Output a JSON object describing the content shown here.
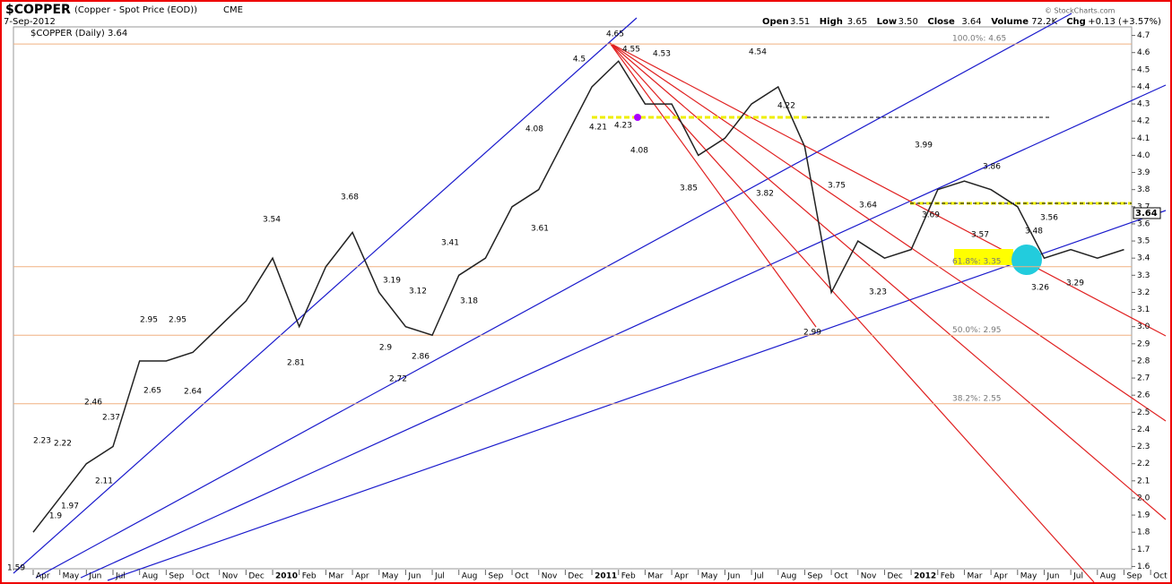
{
  "chart_data": {
    "type": "line",
    "title": "$COPPER",
    "subtitle": "(Copper - Spot Price (EOD))",
    "exchange": "CME",
    "date": "7-Sep-2012",
    "legend_label": "$COPPER (Daily) 3.64",
    "quote": [
      [
        "Open",
        "3.51"
      ],
      [
        "High",
        "3.65"
      ],
      [
        "Low",
        "3.50"
      ],
      [
        "Close",
        "3.64"
      ],
      [
        "Volume",
        "72.2K"
      ],
      [
        "Chg",
        "+0.13 (+3.57%)"
      ]
    ],
    "credit": "© StockCharts.com",
    "last_price": 3.64,
    "start_label": 1.59,
    "categories": [
      "Apr",
      "May",
      "Jun",
      "Jul",
      "Aug",
      "Sep",
      "Oct",
      "Nov",
      "Dec",
      "2010",
      "Feb",
      "Mar",
      "Apr",
      "May",
      "Jun",
      "Jul",
      "Aug",
      "Sep",
      "Oct",
      "Nov",
      "Dec",
      "2011",
      "Feb",
      "Mar",
      "Apr",
      "May",
      "Jun",
      "Jul",
      "Aug",
      "Sep",
      "Oct",
      "Nov",
      "Dec",
      "2012",
      "Feb",
      "Mar",
      "Apr",
      "May",
      "Jun",
      "Jul",
      "Aug",
      "Sep",
      "Oct"
    ],
    "series": [
      {
        "name": "$COPPER",
        "color": "#222222",
        "values": [
          1.8,
          2.0,
          2.2,
          2.3,
          2.8,
          2.8,
          2.85,
          3.0,
          3.15,
          3.4,
          3.0,
          3.35,
          3.55,
          3.2,
          3.0,
          2.95,
          3.3,
          3.4,
          3.7,
          3.8,
          4.1,
          4.4,
          4.55,
          4.3,
          4.3,
          4.0,
          4.1,
          4.3,
          4.4,
          4.05,
          3.2,
          3.5,
          3.4,
          3.45,
          3.8,
          3.85,
          3.8,
          3.7,
          3.4,
          3.45,
          3.4,
          3.45,
          null
        ]
      }
    ],
    "annotations": [
      2.23,
      1.9,
      2.22,
      1.97,
      2.46,
      2.37,
      2.11,
      2.95,
      2.65,
      2.95,
      2.64,
      3.54,
      2.81,
      3.68,
      3.19,
      2.9,
      3.12,
      2.72,
      2.86,
      3.41,
      3.18,
      3.61,
      4.08,
      4.5,
      4.65,
      4.55,
      4.53,
      4.21,
      4.23,
      4.08,
      3.85,
      4.54,
      4.22,
      3.82,
      3.75,
      3.64,
      2.99,
      3.23,
      3.99,
      3.69,
      3.86,
      3.57,
      3.48,
      3.56,
      3.26,
      3.29
    ],
    "fib_levels": [
      {
        "value": 4.65,
        "label": "100.0%: 4.65"
      },
      {
        "value": 3.35,
        "label": "61.8%: 3.35"
      },
      {
        "value": 2.95,
        "label": "50.0%: 2.95"
      },
      {
        "value": 2.55,
        "label": "38.2%: 2.55"
      }
    ],
    "ylim": [
      1.55,
      4.75
    ],
    "yticks": [
      1.6,
      1.7,
      1.8,
      1.9,
      {
        "value": 2,
        "label": "2.0"
      },
      2.1,
      2.2,
      2.3,
      2.4,
      2.5,
      2.6,
      2.7,
      2.8,
      2.9,
      {
        "value": 3,
        "label": "3.0"
      },
      3.1,
      3.2,
      3.3,
      3.4,
      3.5,
      3.6,
      3.7,
      3.8,
      3.9,
      {
        "value": 4,
        "label": "4.0"
      },
      4.1,
      4.2,
      4.3,
      4.4,
      4.5,
      4.6,
      4.7
    ]
  }
}
